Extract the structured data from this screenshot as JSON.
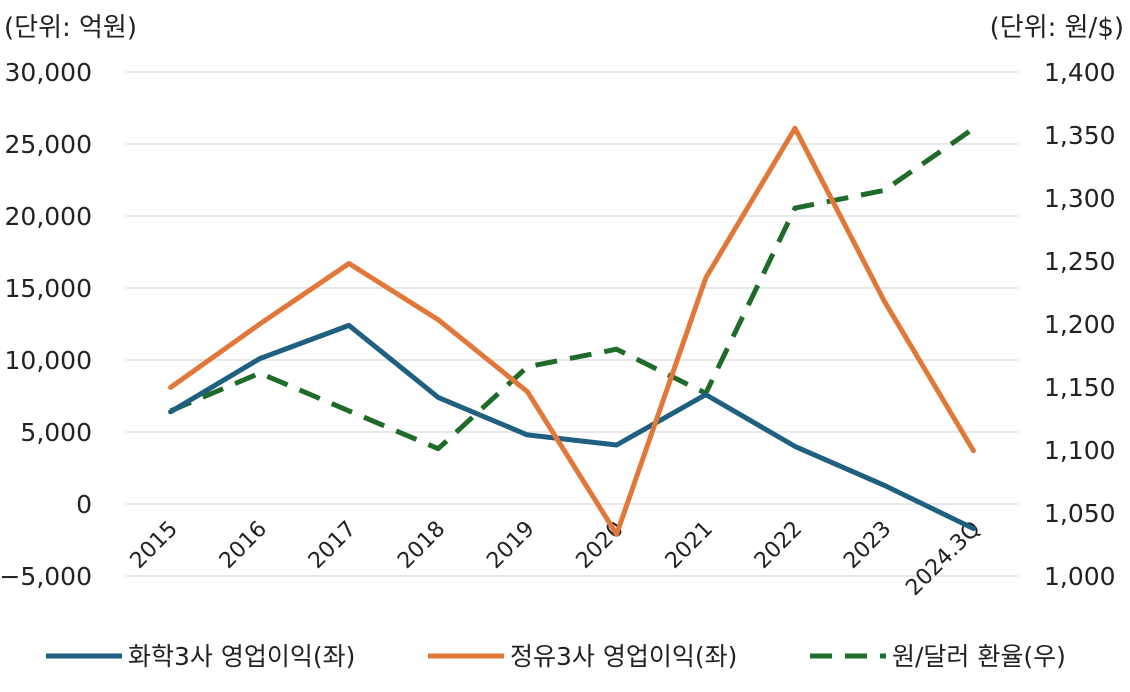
{
  "chart_data": {
    "type": "line",
    "categories": [
      "2015",
      "2016",
      "2017",
      "2018",
      "2019",
      "2020",
      "2021",
      "2022",
      "2023",
      "2024.3Q"
    ],
    "left_axis": {
      "unit_label": "(단위: 억원)",
      "ylim": [
        -5000,
        30000
      ],
      "ticks": [
        30000,
        25000,
        20000,
        15000,
        10000,
        5000,
        0,
        -5000
      ],
      "tick_labels": [
        "30,000",
        "25,000",
        "20,000",
        "15,000",
        "10,000",
        "5,000",
        "0",
        "−5,000"
      ]
    },
    "right_axis": {
      "unit_label": "(단위: 원/$)",
      "ylim": [
        1000,
        1400
      ],
      "ticks": [
        1400,
        1350,
        1300,
        1250,
        1200,
        1150,
        1100,
        1050,
        1000
      ],
      "tick_labels": [
        "1,400",
        "1,350",
        "1,300",
        "1,250",
        "1,200",
        "1,150",
        "1,100",
        "1,050",
        "1,000"
      ]
    },
    "grid": true,
    "legend_position": "bottom",
    "series": [
      {
        "name": "화학3사 영업이익(좌)",
        "axis": "left",
        "style": "solid",
        "color": "#1f5f7f",
        "values": [
          6400,
          10100,
          12400,
          7400,
          4800,
          4100,
          7600,
          4000,
          1300,
          -1700
        ]
      },
      {
        "name": "정유3사 영업이익(좌)",
        "axis": "left",
        "style": "solid",
        "color": "#e2773a",
        "values": [
          8100,
          12500,
          16700,
          12800,
          7800,
          -2100,
          15700,
          26100,
          14100,
          3700
        ]
      },
      {
        "name": "원/달러 환율(우)",
        "axis": "right",
        "style": "dashed",
        "color": "#1f6b2a",
        "values": [
          1131,
          1161,
          1131,
          1101,
          1166,
          1180,
          1145,
          1292,
          1306,
          1355
        ]
      }
    ]
  }
}
